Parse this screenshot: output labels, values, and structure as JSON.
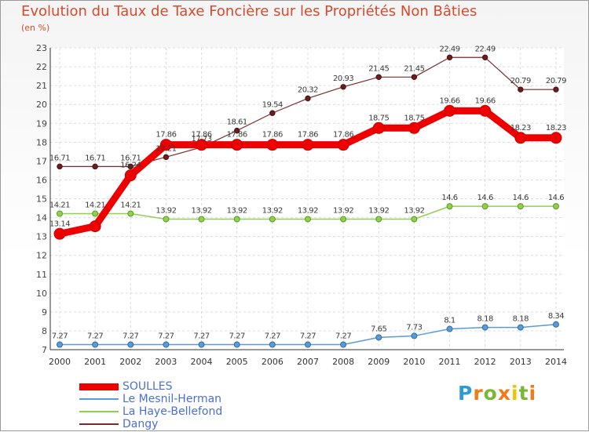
{
  "title": "Evolution du Taux de Taxe Foncière sur les Propriétés Non Bâties",
  "unit": "(en %)",
  "logo": {
    "text": "Proxiti"
  },
  "chart_data": {
    "type": "line",
    "title": "Evolution du Taux de Taxe Foncière sur les Propriétés Non Bâties",
    "ylabel": "(en %)",
    "x": [
      "2000",
      "2001",
      "2002",
      "2003",
      "2004",
      "2005",
      "2006",
      "2007",
      "2008",
      "2009",
      "2010",
      "2011",
      "2012",
      "2013",
      "2014"
    ],
    "ylim": [
      7,
      23
    ],
    "yticks": [
      "7",
      "8",
      "9",
      "10",
      "11",
      "12",
      "13",
      "14",
      "15",
      "16",
      "17",
      "18",
      "19",
      "20",
      "21",
      "22",
      "23"
    ],
    "grid": true,
    "legend_position": "bottom-left",
    "series": [
      {
        "name": "SOULLES",
        "color": "#ee0000",
        "values": [
          13.14,
          13.54,
          16.24,
          17.86,
          17.86,
          17.86,
          17.86,
          17.86,
          17.86,
          18.75,
          18.75,
          19.66,
          19.66,
          18.23,
          18.23
        ],
        "labels": [
          "13.14",
          "",
          "16.24",
          "17.86",
          "17.86",
          "17.86",
          "17.86",
          "17.86",
          "17.86",
          "18.75",
          "18.75",
          "19.66",
          "19.66",
          "18.23",
          "18.23"
        ]
      },
      {
        "name": "Le Mesnil-Herman",
        "color": "#5b9bd5",
        "values": [
          7.27,
          7.27,
          7.27,
          7.27,
          7.27,
          7.27,
          7.27,
          7.27,
          7.27,
          7.65,
          7.73,
          8.1,
          8.18,
          8.18,
          8.34
        ],
        "labels": [
          "7.27",
          "7.27",
          "7.27",
          "7.27",
          "7.27",
          "7.27",
          "7.27",
          "7.27",
          "7.27",
          "7.65",
          "7.73",
          "8.1",
          "8.18",
          "8.18",
          "8.34"
        ]
      },
      {
        "name": "La Haye-Bellefond",
        "color": "#8fd14f",
        "values": [
          14.21,
          14.21,
          14.21,
          13.92,
          13.92,
          13.92,
          13.92,
          13.92,
          13.92,
          13.92,
          13.92,
          14.6,
          14.6,
          14.6,
          14.6
        ],
        "labels": [
          "14.21",
          "14.21",
          "14.21",
          "13.92",
          "13.92",
          "13.92",
          "13.92",
          "13.92",
          "13.92",
          "13.92",
          "13.92",
          "14.6",
          "14.6",
          "14.6",
          "14.6"
        ]
      },
      {
        "name": "Dangy",
        "color": "#7a2a2a",
        "values": [
          16.71,
          16.71,
          16.71,
          17.21,
          17.73,
          18.61,
          19.54,
          20.32,
          20.93,
          21.45,
          21.45,
          22.49,
          22.49,
          20.79,
          20.79
        ],
        "labels": [
          "16.71",
          "16.71",
          "16.71",
          "17.21",
          "17.73",
          "18.61",
          "19.54",
          "20.32",
          "20.93",
          "21.45",
          "21.45",
          "22.49",
          "22.49",
          "20.79",
          "20.79"
        ]
      }
    ]
  }
}
